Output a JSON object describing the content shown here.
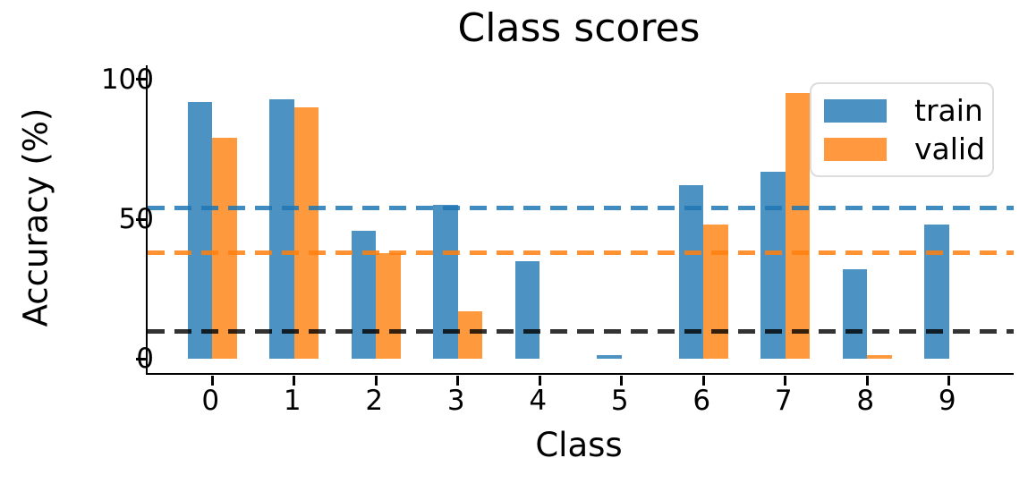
{
  "chart_data": {
    "type": "bar",
    "title": "Class scores",
    "xlabel": "Class",
    "ylabel": "Accuracy (%)",
    "categories": [
      "0",
      "1",
      "2",
      "3",
      "4",
      "5",
      "6",
      "7",
      "8",
      "9"
    ],
    "series": [
      {
        "name": "train",
        "color": "31,119,180",
        "alpha": 0.8,
        "values": [
          92,
          93,
          46,
          55,
          35,
          1.5,
          62,
          67,
          32,
          48
        ]
      },
      {
        "name": "valid",
        "color": "255,127,14",
        "alpha": 0.8,
        "values": [
          79,
          90,
          38,
          17,
          0,
          0,
          48,
          95,
          1.5,
          0
        ]
      }
    ],
    "hlines": [
      {
        "value": 54,
        "color": "31,119,180",
        "alpha": 0.85,
        "style": "dashed"
      },
      {
        "value": 38,
        "color": "255,127,14",
        "alpha": 0.85,
        "style": "dashed"
      },
      {
        "value": 10,
        "color": "0,0,0",
        "alpha": 0.8,
        "style": "dashed"
      }
    ],
    "yticks": [
      "100",
      "50",
      "0"
    ],
    "ytick_values": [
      100,
      50,
      0
    ],
    "ylim": [
      -5,
      105
    ],
    "xlim": [
      -0.79,
      9.79
    ],
    "bar_width": 0.3,
    "grid": false,
    "legend": {
      "position": "upper right",
      "entries": [
        "train",
        "valid"
      ]
    }
  }
}
